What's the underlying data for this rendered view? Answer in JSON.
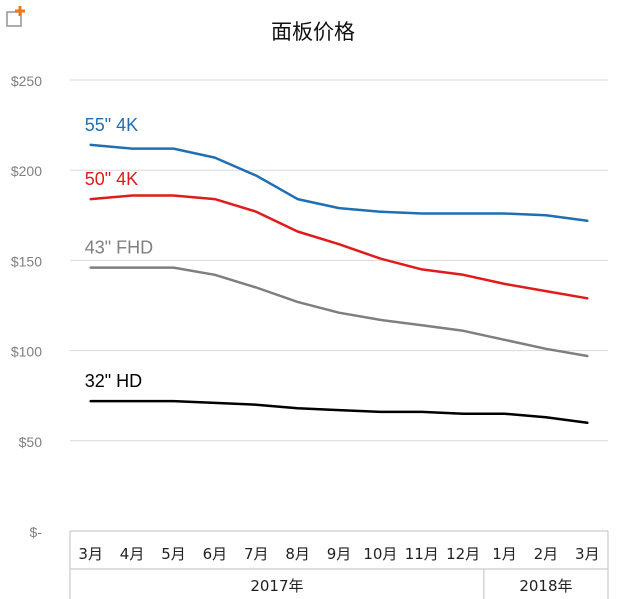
{
  "corner_icon": "add-to-collection-icon",
  "chart_data": {
    "type": "line",
    "title": "面板价格",
    "xlabel": "",
    "ylabel": "",
    "categories": [
      "3月",
      "4月",
      "5月",
      "6月",
      "7月",
      "8月",
      "9月",
      "10月",
      "11月",
      "12月",
      "1月",
      "2月",
      "3月"
    ],
    "year_groups": [
      {
        "label": "2017年",
        "from": 0,
        "to": 9
      },
      {
        "label": "2018年",
        "from": 10,
        "to": 12
      }
    ],
    "ylim": [
      0,
      250
    ],
    "yticks": [
      0,
      50,
      100,
      150,
      200,
      250
    ],
    "ytick_labels": [
      "$-",
      "$50",
      "$100",
      "$150",
      "$200",
      "$250"
    ],
    "grid": true,
    "legend": "inline labels near series starts",
    "series": [
      {
        "name": "55\" 4K",
        "color": "#1f6fb5",
        "values": [
          214,
          212,
          212,
          207,
          197,
          184,
          179,
          177,
          176,
          176,
          176,
          175,
          172
        ]
      },
      {
        "name": "50\" 4K",
        "color": "#e01b1b",
        "values": [
          184,
          186,
          186,
          184,
          177,
          166,
          159,
          151,
          145,
          142,
          137,
          133,
          129
        ]
      },
      {
        "name": "43\" FHD",
        "color": "#7f7f7f",
        "values": [
          146,
          146,
          146,
          142,
          135,
          127,
          121,
          117,
          114,
          111,
          106,
          101,
          97
        ]
      },
      {
        "name": "32\" HD",
        "color": "#000000",
        "values": [
          72,
          72,
          72,
          71,
          70,
          68,
          67,
          66,
          66,
          65,
          65,
          63,
          60
        ]
      }
    ]
  }
}
